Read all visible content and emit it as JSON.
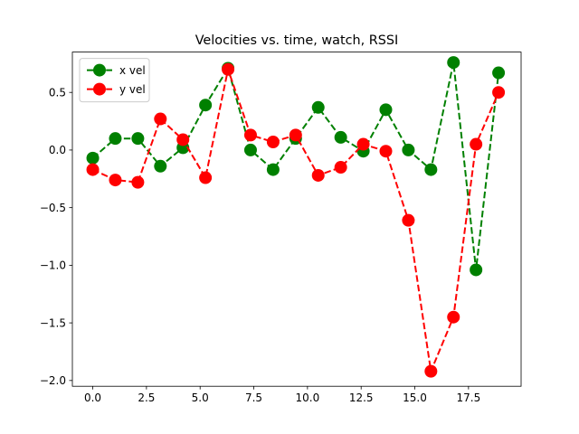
{
  "chart_data": {
    "type": "line",
    "title": "Velocities vs. time, watch, RSSI",
    "xlabel": "",
    "ylabel": "",
    "xlim": [
      -0.95,
      19.95
    ],
    "ylim": [
      -2.05,
      0.85
    ],
    "xticks": [
      0.0,
      2.5,
      5.0,
      7.5,
      10.0,
      12.5,
      15.0,
      17.5
    ],
    "xtick_labels": [
      "0.0",
      "2.5",
      "5.0",
      "7.5",
      "10.0",
      "12.5",
      "15.0",
      "17.5"
    ],
    "yticks": [
      -2.0,
      -1.5,
      -1.0,
      -0.5,
      0.0,
      0.5
    ],
    "ytick_labels": [
      "−2.0",
      "−1.5",
      "−1.0",
      "−0.5",
      "0.0",
      "0.5"
    ],
    "x": [
      0.0,
      1.05,
      2.1,
      3.15,
      4.2,
      5.25,
      6.3,
      7.35,
      8.4,
      9.45,
      10.5,
      11.55,
      12.6,
      13.65,
      14.7,
      15.75,
      16.8,
      17.85,
      18.9
    ],
    "legend_position": "top-left",
    "grid": false,
    "series": [
      {
        "name": "x vel",
        "color": "#008000",
        "linestyle": "dashed",
        "marker": "circle",
        "values": [
          -0.07,
          0.1,
          0.1,
          -0.14,
          0.02,
          0.39,
          0.71,
          0.0,
          -0.17,
          0.1,
          0.37,
          0.11,
          -0.01,
          0.35,
          0.0,
          -0.17,
          0.76,
          -1.04,
          0.67
        ]
      },
      {
        "name": "y vel",
        "color": "#ff0000",
        "linestyle": "dashed",
        "marker": "circle",
        "values": [
          -0.17,
          -0.26,
          -0.28,
          0.27,
          0.09,
          -0.24,
          0.7,
          0.13,
          0.07,
          0.13,
          -0.22,
          -0.15,
          0.05,
          -0.01,
          -0.61,
          -1.92,
          -1.45,
          0.05,
          0.5
        ]
      }
    ]
  }
}
